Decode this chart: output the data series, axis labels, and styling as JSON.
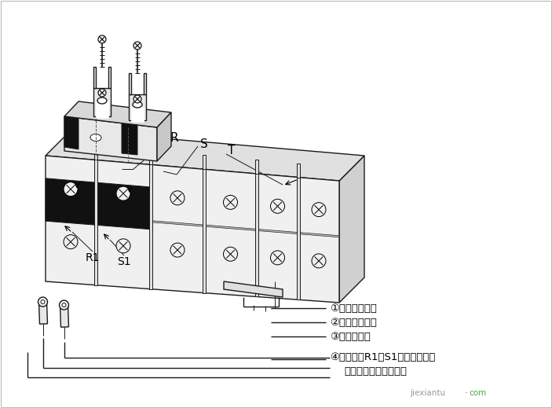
{
  "bg_color": "#ffffff",
  "line_color": "#1a1a1a",
  "gray_light": "#e8e8e8",
  "gray_mid": "#cccccc",
  "gray_dark": "#aaaaaa",
  "black_fill": "#111111",
  "label_R": "R",
  "label_S": "S",
  "label_T": "T",
  "label_R1": "R1",
  "label_S1": "S1",
  "ann1": "①拧松上排螺丝",
  "ann2": "②取出下排螺丝",
  "ann3": "③取出短路片",
  "ann4": "④用导线将R1、S1端子与断路器",
  "ann5": "输入俧的两相电源连接",
  "wm1": "jiexiantu",
  "wm2": "com",
  "figsize": [
    7.03,
    5.19
  ],
  "dpi": 100
}
